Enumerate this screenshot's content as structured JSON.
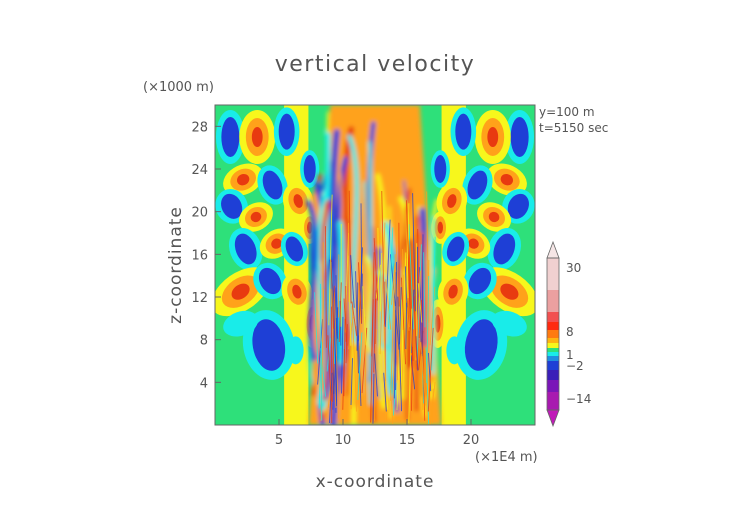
{
  "chart_data": {
    "type": "heatmap",
    "title": "vertical velocity",
    "xlabel": "x-coordinate",
    "ylabel": "z-coordinate",
    "x_unit": "(×1E4 m)",
    "y_unit": "(×1000 m)",
    "annotations": [
      "y=100 m",
      "t=5150 sec"
    ],
    "xlim": [
      0,
      25
    ],
    "ylim": [
      0,
      30
    ],
    "xticks": [
      5,
      10,
      15,
      20
    ],
    "yticks": [
      4,
      8,
      12,
      16,
      20,
      24,
      28
    ],
    "colorbar": {
      "tick_labels": [
        "30",
        "8",
        "1",
        "−2",
        "−14"
      ],
      "tick_values": [
        30,
        8,
        1,
        -2,
        -14
      ],
      "extend": "both"
    },
    "field_description": "Vertical velocity field showing gravity waves radiating from a turbulent central region near x = 12.5",
    "colors": {
      "background_field": "#2ee07a",
      "pos_weak": "#f7f71c",
      "pos_mid": "#ffa21a",
      "pos_strong": "#e83a10",
      "neg_weak": "#19ece9",
      "neg_strong": "#1e3fd6",
      "neg_extreme": "#8a14b4"
    }
  }
}
